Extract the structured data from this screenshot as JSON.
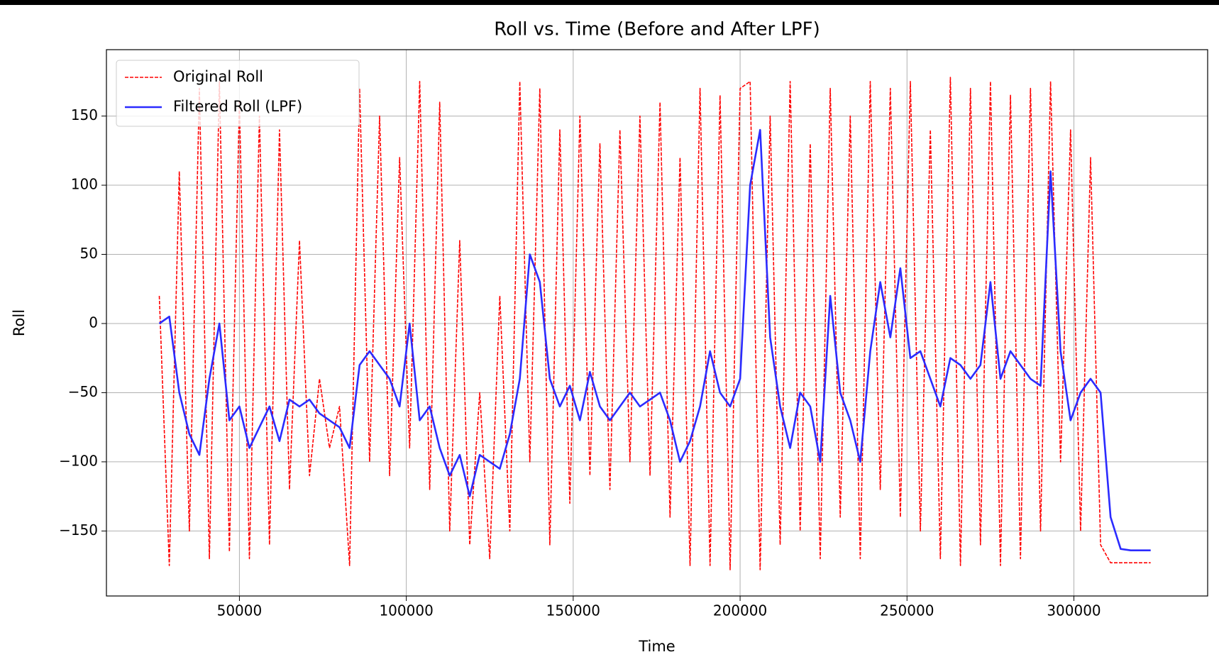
{
  "chart_data": {
    "type": "line",
    "title": "Roll vs. Time (Before and After LPF)",
    "x_label": "Time",
    "y_label": "Roll",
    "x": [
      26000,
      29000,
      32000,
      35000,
      38000,
      41000,
      44000,
      47000,
      50000,
      53000,
      56000,
      59000,
      62000,
      65000,
      68000,
      71000,
      74000,
      77000,
      80000,
      83000,
      86000,
      89000,
      92000,
      95000,
      98000,
      101000,
      104000,
      107000,
      110000,
      113000,
      116000,
      119000,
      122000,
      125000,
      128000,
      131000,
      134000,
      137000,
      140000,
      143000,
      146000,
      149000,
      152000,
      155000,
      158000,
      161000,
      164000,
      167000,
      170000,
      173000,
      176000,
      179000,
      182000,
      185000,
      188000,
      191000,
      194000,
      197000,
      200000,
      203000,
      206000,
      209000,
      212000,
      215000,
      218000,
      221000,
      224000,
      227000,
      230000,
      233000,
      236000,
      239000,
      242000,
      245000,
      248000,
      251000,
      254000,
      257000,
      260000,
      263000,
      266000,
      269000,
      272000,
      275000,
      278000,
      281000,
      284000,
      287000,
      290000,
      293000,
      296000,
      299000,
      302000,
      305000,
      308000,
      311000,
      314000,
      317000,
      320000,
      323000
    ],
    "series": [
      {
        "name": "Original Roll",
        "color": "#ff0000",
        "linestyle": "dashed",
        "values": [
          20,
          -175,
          110,
          -150,
          170,
          -170,
          175,
          -165,
          160,
          -170,
          150,
          -160,
          140,
          -120,
          60,
          -110,
          -40,
          -90,
          -60,
          -175,
          170,
          -100,
          150,
          -110,
          120,
          -90,
          175,
          -120,
          160,
          -150,
          60,
          -160,
          -50,
          -170,
          20,
          -150,
          175,
          -100,
          170,
          -160,
          140,
          -130,
          150,
          -110,
          130,
          -120,
          140,
          -100,
          150,
          -110,
          160,
          -140,
          120,
          -175,
          170,
          -175,
          165,
          -178,
          170,
          175,
          -178,
          150,
          -160,
          175,
          -150,
          130,
          -170,
          170,
          -140,
          150,
          -170,
          175,
          -120,
          170,
          -140,
          175,
          -150,
          140,
          -170,
          178,
          -175,
          170,
          -160,
          175,
          -175,
          165,
          -170,
          170,
          -150,
          175,
          -100,
          140,
          -150,
          120,
          -160,
          -173,
          -173,
          -173,
          -173,
          -173
        ]
      },
      {
        "name": "Filtered Roll (LPF)",
        "color": "#2b2bff",
        "linestyle": "solid",
        "values": [
          0,
          5,
          -50,
          -80,
          -95,
          -40,
          0,
          -70,
          -60,
          -90,
          -75,
          -60,
          -85,
          -55,
          -60,
          -55,
          -65,
          -70,
          -75,
          -90,
          -30,
          -20,
          -30,
          -40,
          -60,
          0,
          -70,
          -60,
          -90,
          -110,
          -95,
          -125,
          -95,
          -100,
          -105,
          -80,
          -40,
          50,
          30,
          -40,
          -60,
          -45,
          -70,
          -35,
          -60,
          -70,
          -60,
          -50,
          -60,
          -55,
          -50,
          -70,
          -100,
          -85,
          -60,
          -20,
          -50,
          -60,
          -40,
          100,
          140,
          -10,
          -60,
          -90,
          -50,
          -60,
          -100,
          20,
          -50,
          -70,
          -100,
          -20,
          30,
          -10,
          40,
          -25,
          -20,
          -40,
          -60,
          -25,
          -30,
          -40,
          -30,
          30,
          -40,
          -20,
          -30,
          -40,
          -45,
          110,
          -20,
          -70,
          -50,
          -40,
          -50,
          -140,
          -163,
          -164,
          -164,
          -164
        ]
      }
    ],
    "xlim": [
      10160,
      340070
    ],
    "ylim": [
      -197,
      198
    ],
    "xticks": [
      50000,
      100000,
      150000,
      200000,
      250000,
      300000
    ],
    "yticks": [
      {
        "value": -150,
        "label": "−150"
      },
      {
        "value": -100,
        "label": "−100"
      },
      {
        "value": -50,
        "label": "−50"
      },
      0,
      50,
      100,
      150
    ],
    "grid": true,
    "legend": "upper left"
  }
}
